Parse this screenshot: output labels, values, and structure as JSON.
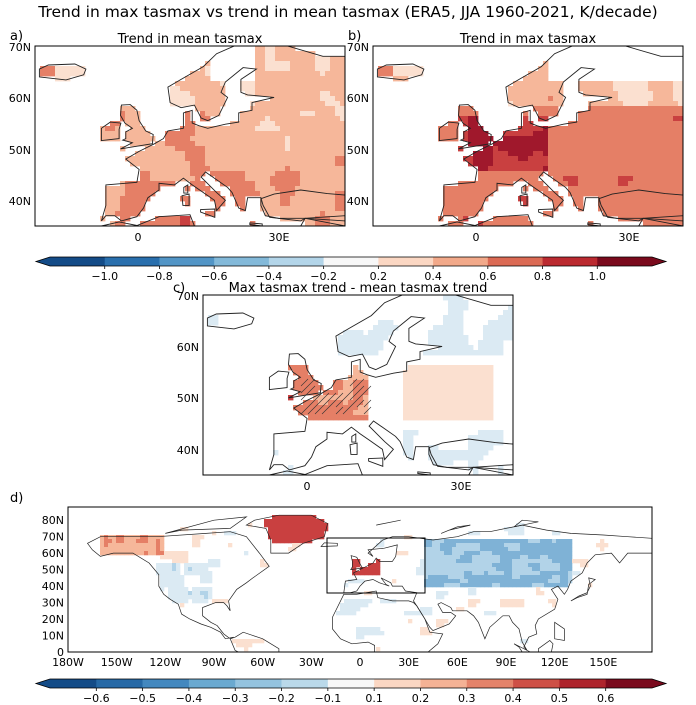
{
  "title": "Trend in max tasmax vs trend in mean tasmax (ERA5, JJA 1960-2021, K/decade)",
  "colors": {
    "neg": [
      "#67001f",
      "#b2182b",
      "#d6604d",
      "#f4a582",
      "#fddbc7",
      "#f7f7f7",
      "#d1e5f0",
      "#92c5de",
      "#4393c3",
      "#2166ac",
      "#053061"
    ],
    "ocean": "#ffffff",
    "coast": "#222222"
  },
  "chart_data": [
    {
      "type": "heatmap",
      "panel": "a)",
      "title": "Trend in mean tasmax",
      "yticks": [
        "70N",
        "60N",
        "50N",
        "40N"
      ],
      "xticks": [
        "0",
        "30E"
      ],
      "ylim": [
        35,
        70
      ],
      "xlim": [
        -25,
        45
      ],
      "field": "europe_a"
    },
    {
      "type": "heatmap",
      "panel": "b)",
      "title": "Trend in max tasmax",
      "yticks": [
        "70N",
        "60N",
        "50N",
        "40N"
      ],
      "xticks": [
        "0",
        "30E"
      ],
      "ylim": [
        35,
        70
      ],
      "xlim": [
        -25,
        45
      ],
      "field": "europe_b"
    },
    {
      "type": "heatmap",
      "panel": "c)",
      "title": "Max tasmax trend - mean tasmax trend",
      "yticks": [
        "70N",
        "60N",
        "50N",
        "40N"
      ],
      "xticks": [
        "0",
        "30E"
      ],
      "ylim": [
        35,
        70
      ],
      "xlim": [
        -25,
        45
      ],
      "field": "europe_c"
    },
    {
      "type": "heatmap",
      "panel": "d)",
      "title": "",
      "yticks": [
        "80N",
        "70N",
        "60N",
        "50N",
        "40N",
        "30N",
        "20N",
        "10N",
        "0"
      ],
      "xticks": [
        "180W",
        "150W",
        "120W",
        "90W",
        "60W",
        "30W",
        "0",
        "30E",
        "60E",
        "90E",
        "120E",
        "150E"
      ],
      "ylim": [
        0,
        85
      ],
      "xlim": [
        -180,
        180
      ],
      "field": "global_d"
    }
  ],
  "colorbar1": {
    "ticks": [
      "−1.0",
      "−0.8",
      "−0.6",
      "−0.4",
      "−0.2",
      "0.2",
      "0.4",
      "0.6",
      "0.8",
      "1.0"
    ],
    "range": [
      -1.0,
      1.0
    ]
  },
  "colorbar2": {
    "ticks": [
      "−0.6",
      "−0.5",
      "−0.4",
      "−0.3",
      "−0.2",
      "−0.1",
      "0.1",
      "0.2",
      "0.3",
      "0.4",
      "0.5",
      "0.6"
    ],
    "range": [
      -0.6,
      0.6
    ]
  }
}
